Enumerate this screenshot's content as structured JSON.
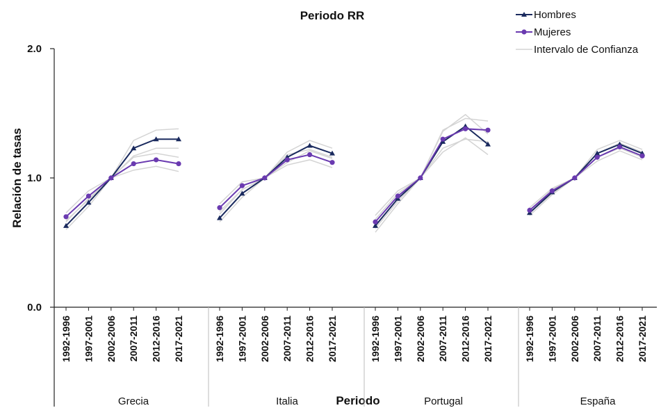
{
  "chart_data": {
    "type": "line",
    "title": "Periodo RR",
    "xlabel": "Periodo",
    "ylabel": "Relación de tasas",
    "ylim": [
      0.0,
      2.0
    ],
    "yticks": [
      "0.0",
      "1.0",
      "2.0"
    ],
    "periods": [
      "1992-1996",
      "1997-2001",
      "2002-2006",
      "2007-2011",
      "2012-2016",
      "2017-2021"
    ],
    "legend": {
      "position": "top-right",
      "entries": [
        "Hombres",
        "Mujeres",
        "Intervalo de Confianza"
      ]
    },
    "colors": {
      "hombres": "#1a2a5e",
      "mujeres": "#6a3ab0",
      "ci": "#d4d4d4",
      "axis": "#222222"
    },
    "groups": [
      {
        "name": "Grecia",
        "hombres": [
          0.63,
          0.81,
          1.0,
          1.23,
          1.3,
          1.3
        ],
        "mujeres": [
          0.7,
          0.86,
          1.0,
          1.11,
          1.14,
          1.11
        ],
        "hombres_ci_low": [
          0.6,
          0.78,
          1.0,
          1.17,
          1.23,
          1.23
        ],
        "hombres_ci_high": [
          0.66,
          0.84,
          1.0,
          1.29,
          1.37,
          1.38
        ],
        "mujeres_ci_low": [
          0.67,
          0.83,
          1.0,
          1.06,
          1.09,
          1.05
        ],
        "mujeres_ci_high": [
          0.73,
          0.9,
          1.0,
          1.16,
          1.19,
          1.16
        ]
      },
      {
        "name": "Italia",
        "hombres": [
          0.69,
          0.88,
          1.0,
          1.16,
          1.25,
          1.19
        ],
        "mujeres": [
          0.77,
          0.94,
          1.0,
          1.14,
          1.18,
          1.12
        ],
        "hombres_ci_low": [
          0.66,
          0.85,
          1.0,
          1.12,
          1.21,
          1.15
        ],
        "hombres_ci_high": [
          0.72,
          0.91,
          1.0,
          1.2,
          1.29,
          1.23
        ],
        "mujeres_ci_low": [
          0.74,
          0.91,
          1.0,
          1.1,
          1.14,
          1.08
        ],
        "mujeres_ci_high": [
          0.8,
          0.97,
          1.0,
          1.18,
          1.22,
          1.16
        ]
      },
      {
        "name": "Portugal",
        "hombres": [
          0.63,
          0.84,
          1.0,
          1.28,
          1.4,
          1.26
        ],
        "mujeres": [
          0.66,
          0.86,
          1.0,
          1.3,
          1.38,
          1.37
        ],
        "hombres_ci_low": [
          0.58,
          0.8,
          1.0,
          1.2,
          1.31,
          1.18
        ],
        "hombres_ci_high": [
          0.68,
          0.88,
          1.0,
          1.36,
          1.49,
          1.34
        ],
        "mujeres_ci_low": [
          0.61,
          0.82,
          1.0,
          1.23,
          1.3,
          1.28
        ],
        "mujeres_ci_high": [
          0.71,
          0.9,
          1.0,
          1.37,
          1.46,
          1.44
        ]
      },
      {
        "name": "España",
        "hombres": [
          0.73,
          0.89,
          1.0,
          1.19,
          1.26,
          1.19
        ],
        "mujeres": [
          0.75,
          0.9,
          1.0,
          1.16,
          1.24,
          1.17
        ],
        "hombres_ci_low": [
          0.71,
          0.87,
          1.0,
          1.16,
          1.23,
          1.16
        ],
        "hombres_ci_high": [
          0.75,
          0.91,
          1.0,
          1.22,
          1.29,
          1.22
        ],
        "mujeres_ci_low": [
          0.73,
          0.88,
          1.0,
          1.13,
          1.21,
          1.14
        ],
        "mujeres_ci_high": [
          0.77,
          0.92,
          1.0,
          1.19,
          1.27,
          1.2
        ]
      }
    ]
  }
}
